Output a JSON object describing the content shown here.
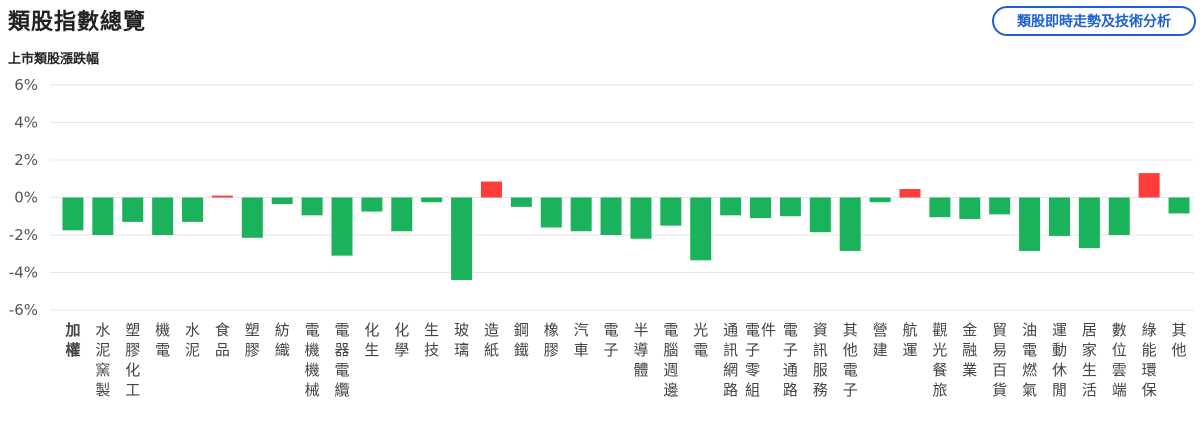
{
  "header": {
    "title": "類股指數總覽",
    "button_label": "類股即時走勢及技術分析"
  },
  "colors": {
    "up": "#ff3b3b",
    "down": "#1ab25a",
    "grid": "#e6e6e6",
    "accent": "#1f5fd6"
  },
  "chart_data": {
    "type": "bar",
    "title": "上市類股漲跌幅",
    "xlabel": "",
    "ylabel": "",
    "ylim": [
      -6,
      6
    ],
    "yticks": [
      6,
      4,
      2,
      0,
      -2,
      -4,
      -6
    ],
    "ytick_labels": [
      "6%",
      "4%",
      "2%",
      "0%",
      "-2%",
      "-4%",
      "-6%"
    ],
    "grid": true,
    "categories": [
      "加權",
      "水泥窯製",
      "塑膠化工",
      "機電",
      "水泥",
      "食品",
      "塑膠",
      "紡織",
      "電機機械",
      "電器電纜",
      "化生",
      "化學",
      "生技",
      "玻璃",
      "造紙",
      "鋼鐵",
      "橡膠",
      "汽車",
      "電子",
      "半導體",
      "電腦週邊",
      "光電",
      "通訊網路",
      "電子零組件",
      "電子通路",
      "資訊服務",
      "其他電子",
      "營建",
      "航運",
      "觀光餐旅",
      "金融業",
      "貿易百貨",
      "油電燃氣",
      "運動休閒",
      "居家生活",
      "數位雲端",
      "綠能環保",
      "其他"
    ],
    "values": [
      -1.75,
      -2.0,
      -1.3,
      -2.0,
      -1.3,
      0.1,
      -2.15,
      -0.35,
      -0.95,
      -3.1,
      -0.75,
      -1.8,
      -0.25,
      -4.4,
      0.85,
      -0.5,
      -1.6,
      -1.8,
      -2.0,
      -2.2,
      -1.5,
      -3.35,
      -0.95,
      -1.1,
      -1.0,
      -1.85,
      -2.85,
      -0.25,
      0.45,
      -1.05,
      -1.15,
      -0.9,
      -2.85,
      -2.05,
      -2.7,
      -2.0,
      1.3,
      -0.85
    ]
  }
}
